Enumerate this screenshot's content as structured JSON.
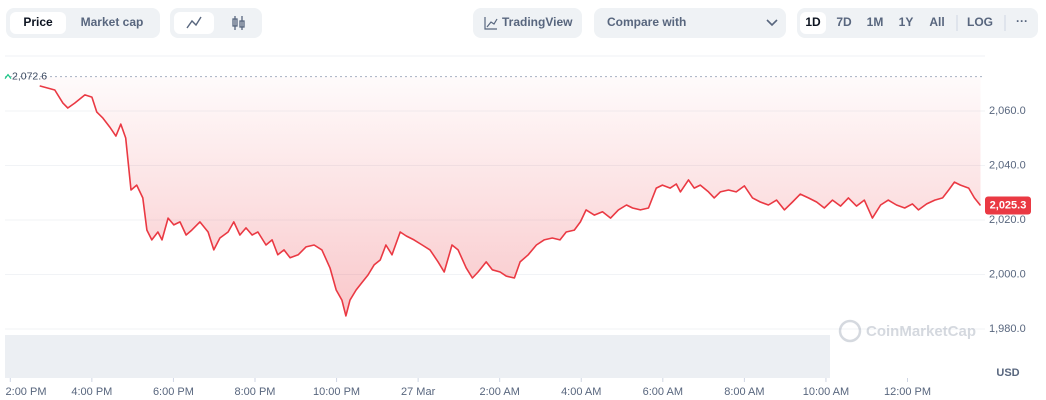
{
  "toolbar": {
    "tabs": [
      "Price",
      "Market cap"
    ],
    "trading_view": "TradingView",
    "compare": "Compare with",
    "ranges": [
      "1D",
      "7D",
      "1M",
      "1Y",
      "All"
    ],
    "log": "LOG",
    "more": "···"
  },
  "chart_data": {
    "type": "line",
    "currency": "USD",
    "watermark": "CoinMarketCap",
    "x": [
      0.72,
      1.09,
      1.29,
      1.41,
      1.58,
      1.83,
      2.0,
      2.12,
      2.27,
      2.44,
      2.59,
      2.71,
      2.83,
      2.96,
      3.1,
      3.25,
      3.35,
      3.47,
      3.62,
      3.72,
      3.87,
      4.01,
      4.16,
      4.31,
      4.45,
      4.65,
      4.85,
      4.99,
      5.14,
      5.34,
      5.48,
      5.63,
      5.78,
      5.93,
      6.07,
      6.27,
      6.42,
      6.56,
      6.71,
      6.86,
      7.06,
      7.25,
      7.45,
      7.64,
      7.84,
      7.99,
      8.13,
      8.23,
      8.33,
      8.48,
      8.63,
      8.77,
      8.92,
      9.07,
      9.21,
      9.36,
      9.56,
      9.71,
      9.9,
      10.1,
      10.29,
      10.49,
      10.64,
      10.83,
      10.98,
      11.18,
      11.33,
      11.47,
      11.67,
      11.82,
      12.01,
      12.16,
      12.36,
      12.5,
      12.7,
      12.9,
      13.09,
      13.29,
      13.48,
      13.63,
      13.83,
      13.98,
      14.12,
      14.32,
      14.52,
      14.72,
      14.91,
      15.11,
      15.26,
      15.45,
      15.65,
      15.84,
      15.99,
      16.18,
      16.33,
      16.43,
      16.63,
      16.77,
      16.92,
      17.12,
      17.26,
      17.41,
      17.61,
      17.8,
      18.0,
      18.2,
      18.39,
      18.59,
      18.79,
      18.98,
      19.18,
      19.37,
      19.57,
      19.77,
      19.96,
      20.16,
      20.36,
      20.55,
      20.75,
      20.94,
      21.14,
      21.34,
      21.53,
      21.73,
      21.93,
      22.12,
      22.27,
      22.47,
      22.67,
      22.86,
      23.01,
      23.15,
      23.3,
      23.5,
      23.64,
      23.79
    ],
    "series": [
      {
        "name": "Price",
        "color": "#ea3943",
        "values": [
          2069.2,
          2067.7,
          2062.9,
          2061.1,
          2062.9,
          2065.9,
          2065.1,
          2059.6,
          2057.4,
          2054.1,
          2050.8,
          2055.2,
          2050.1,
          2031.0,
          2032.8,
          2028.1,
          2016.3,
          2012.7,
          2015.6,
          2012.7,
          2020.7,
          2018.2,
          2019.3,
          2014.5,
          2016.3,
          2019.3,
          2015.6,
          2009.0,
          2013.4,
          2015.6,
          2019.3,
          2014.5,
          2017.1,
          2014.5,
          2015.6,
          2010.8,
          2012.7,
          2007.2,
          2009.0,
          2006.1,
          2007.2,
          2010.1,
          2010.8,
          2009.0,
          2002.4,
          1994.3,
          1990.6,
          1984.8,
          1990.6,
          1994.3,
          1997.2,
          1999.8,
          2003.5,
          2005.3,
          2010.8,
          2007.2,
          2015.6,
          2014.1,
          2012.7,
          2010.8,
          2009.0,
          2004.6,
          2000.9,
          2010.8,
          2009.0,
          2002.4,
          1998.7,
          2000.9,
          2004.6,
          2001.7,
          2000.9,
          1999.4,
          1998.7,
          2004.6,
          2007.2,
          2010.8,
          2012.7,
          2013.4,
          2012.7,
          2015.6,
          2016.3,
          2019.3,
          2023.7,
          2021.8,
          2023.0,
          2020.7,
          2023.7,
          2025.5,
          2024.4,
          2023.7,
          2024.4,
          2031.7,
          2032.8,
          2031.7,
          2033.2,
          2030.3,
          2034.7,
          2031.7,
          2032.8,
          2030.3,
          2028.1,
          2030.3,
          2031.0,
          2030.3,
          2032.5,
          2028.1,
          2026.6,
          2025.5,
          2027.3,
          2023.7,
          2026.6,
          2029.5,
          2028.1,
          2026.6,
          2024.4,
          2027.3,
          2025.1,
          2028.1,
          2025.1,
          2027.3,
          2020.7,
          2025.5,
          2027.3,
          2025.5,
          2024.4,
          2025.9,
          2023.7,
          2025.9,
          2027.3,
          2028.1,
          2031.0,
          2033.9,
          2032.8,
          2031.7,
          2028.1,
          2025.3
        ]
      }
    ],
    "reference_line": {
      "value": 2072.6,
      "label": "2,072.6"
    },
    "last_price": {
      "value": 2025.3,
      "label": "2,025.3"
    },
    "xlim": [
      -0.13,
      23.9
    ],
    "xticks": [
      {
        "value": 0,
        "label": "2:00 PM"
      },
      {
        "value": 2,
        "label": "4:00 PM"
      },
      {
        "value": 4,
        "label": "6:00 PM"
      },
      {
        "value": 6,
        "label": "8:00 PM"
      },
      {
        "value": 8,
        "label": "10:00 PM"
      },
      {
        "value": 10,
        "label": "27 Mar"
      },
      {
        "value": 12,
        "label": "2:00 AM"
      },
      {
        "value": 14,
        "label": "4:00 AM"
      },
      {
        "value": 16,
        "label": "6:00 AM"
      },
      {
        "value": 18,
        "label": "8:00 AM"
      },
      {
        "value": 20,
        "label": "10:00 AM"
      },
      {
        "value": 22,
        "label": "12:00 PM"
      }
    ],
    "ylim": [
      1962,
      2080
    ],
    "yticks": [
      {
        "value": 1980,
        "label": "1,980.0"
      },
      {
        "value": 2000,
        "label": "2,000.0"
      },
      {
        "value": 2020,
        "label": "2,020.0"
      },
      {
        "value": 2040,
        "label": "2,040.0"
      },
      {
        "value": 2060,
        "label": "2,060.0"
      }
    ],
    "grid": true
  }
}
